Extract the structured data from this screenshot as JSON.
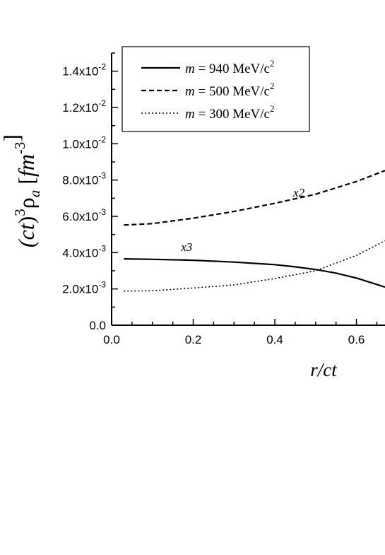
{
  "chart_data": {
    "type": "line",
    "xlabel": "r/ct",
    "ylabel": "(ct)³ρa [fm⁻³]",
    "xlim": [
      0.0,
      0.67
    ],
    "ylim": [
      0.0,
      0.015
    ],
    "x_ticks": [
      "0.0",
      "0.2",
      "0.4",
      "0.6"
    ],
    "y_ticks": [
      {
        "mant": "0.0",
        "exp": ""
      },
      {
        "mant": "2.0x10",
        "exp": "-3"
      },
      {
        "mant": "4.0x10",
        "exp": "-3"
      },
      {
        "mant": "6.0x10",
        "exp": "-3"
      },
      {
        "mant": "8.0x10",
        "exp": "-3"
      },
      {
        "mant": "1.0x10",
        "exp": "-2"
      },
      {
        "mant": "1.2x10",
        "exp": "-2"
      },
      {
        "mant": "1.4x10",
        "exp": "-2"
      }
    ],
    "y_tick_values": [
      0.0,
      0.002,
      0.004,
      0.006,
      0.008,
      0.01,
      0.012,
      0.014
    ],
    "legend_position": "top-left",
    "series": [
      {
        "name": "m = 940 MeV/c²",
        "legend": {
          "var": "m",
          "rest": " = 940 MeV/c",
          "sup": "2"
        },
        "style": "solid",
        "x": [
          0.03,
          0.1,
          0.2,
          0.3,
          0.4,
          0.45,
          0.5,
          0.55,
          0.6,
          0.65,
          0.67
        ],
        "y": [
          0.00366,
          0.00363,
          0.00358,
          0.00348,
          0.00334,
          0.00322,
          0.00307,
          0.00287,
          0.0026,
          0.00225,
          0.0021
        ]
      },
      {
        "name": "m = 500 MeV/c²",
        "legend": {
          "var": "m",
          "rest": " = 500 MeV/c",
          "sup": "2"
        },
        "style": "dashed",
        "x": [
          0.03,
          0.1,
          0.2,
          0.3,
          0.4,
          0.5,
          0.6,
          0.67
        ],
        "y": [
          0.00552,
          0.0056,
          0.0059,
          0.00627,
          0.00672,
          0.00722,
          0.00792,
          0.00852
        ]
      },
      {
        "name": "m = 300 MeV/c²",
        "legend": {
          "var": "m",
          "rest": " = 300 MeV/c",
          "sup": "2"
        },
        "style": "dotted",
        "x": [
          0.03,
          0.1,
          0.2,
          0.3,
          0.4,
          0.5,
          0.6,
          0.67
        ],
        "y": [
          0.00188,
          0.0019,
          0.00205,
          0.00222,
          0.00257,
          0.003,
          0.00385,
          0.00465
        ]
      }
    ],
    "annotations": [
      {
        "text": "x2",
        "x": 0.445,
        "y": 0.0071
      },
      {
        "text": "x3",
        "x": 0.17,
        "y": 0.0041
      }
    ]
  }
}
